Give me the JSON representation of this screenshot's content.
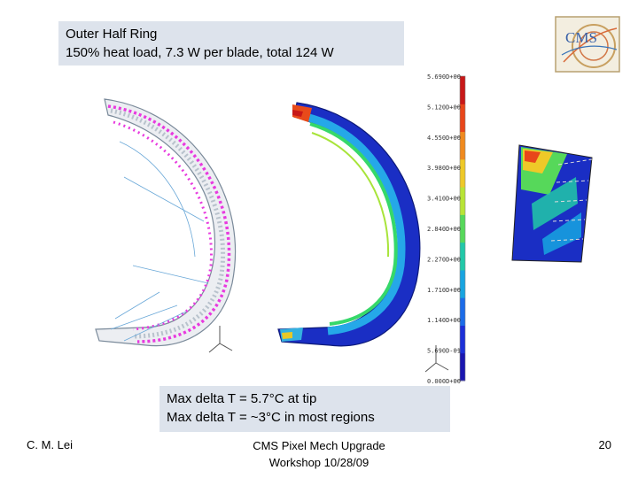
{
  "title": {
    "line1": "Outer Half Ring",
    "line2": "150% heat load,  7.3 W per blade, total 124 W"
  },
  "logo": {
    "text": "CMS"
  },
  "color_scale": {
    "labels": [
      "5.690D+00",
      "5.120D+00",
      "4.550D+00",
      "3.980D+00",
      "3.410D+00",
      "2.840D+00",
      "2.270D+00",
      "1.710D+00",
      "1.140D+00",
      "5.690D-01",
      "0.000D+00"
    ],
    "colors": [
      "#c81818",
      "#e8461a",
      "#f08a1e",
      "#eec928",
      "#b8e436",
      "#56d85a",
      "#22c8a8",
      "#18a4e0",
      "#1c6ce8",
      "#1c30d8",
      "#1a16b0"
    ]
  },
  "result": {
    "line1": "Max delta T = 5.7°C at tip",
    "line2": "Max delta T = ~3°C in most regions"
  },
  "footer": {
    "author": "C. M. Lei",
    "event_line1": "CMS Pixel Mech Upgrade",
    "event_line2": "Workshop 10/28/09",
    "page_number": "20"
  }
}
